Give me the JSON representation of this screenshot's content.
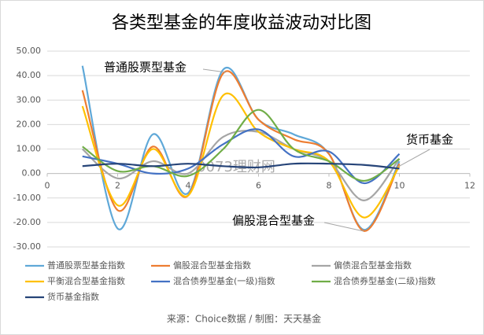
{
  "chart_data": {
    "type": "line",
    "title": "各类型基金的年度收益波动对比图",
    "xlim": [
      0,
      12
    ],
    "xticks": [
      0,
      2,
      4,
      6,
      8,
      10,
      12
    ],
    "ylim": [
      -30,
      50
    ],
    "yticks": [
      {
        "value": -30,
        "label": "-30.00"
      },
      {
        "value": -20,
        "label": "-20.00"
      },
      {
        "value": -10,
        "label": "-10.00"
      },
      {
        "value": 0,
        "label": "0.00"
      },
      {
        "value": 10,
        "label": "10.00"
      },
      {
        "value": 20,
        "label": "20.00"
      },
      {
        "value": 30,
        "label": "30.00"
      },
      {
        "value": 40,
        "label": "40.00"
      },
      {
        "value": 50,
        "label": "50.00"
      }
    ],
    "grid": true,
    "smooth": true,
    "legend": "bottom",
    "x": [
      1,
      2,
      3,
      4,
      5,
      6,
      7,
      8,
      9,
      10
    ],
    "series": [
      {
        "name": "普通股票型基金指数",
        "color": "#5fa8d8",
        "values": [
          44,
          -22.5,
          16,
          -8,
          42.5,
          22,
          16,
          8,
          -23,
          5
        ]
      },
      {
        "name": "偏股混合型基金指数",
        "color": "#ed7d31",
        "values": [
          34,
          -15,
          11,
          -9,
          41,
          22,
          14,
          8,
          -23.5,
          4
        ]
      },
      {
        "name": "偏债混合型基金指数",
        "color": "#a5a5a5",
        "values": [
          10,
          -2,
          5,
          0,
          15,
          17,
          10,
          5,
          -11,
          6
        ]
      },
      {
        "name": "平衡混合型基金指数",
        "color": "#ffc000",
        "values": [
          27.5,
          -13,
          10,
          -9,
          32,
          17,
          10,
          5,
          -18,
          3
        ]
      },
      {
        "name": "混合债券型基金(一级)指数",
        "color": "#4472c4",
        "values": [
          7,
          4,
          0,
          2,
          12,
          18,
          7,
          9,
          -4,
          8
        ]
      },
      {
        "name": "混合债券型基金(二级)指数",
        "color": "#70ad47",
        "values": [
          11,
          1,
          3,
          -1,
          10,
          26,
          10,
          5,
          -3,
          6
        ]
      },
      {
        "name": "货币基金指数",
        "color": "#264478",
        "values": [
          3,
          4,
          3,
          4,
          3,
          2.5,
          4,
          4,
          3.5,
          2
        ]
      }
    ],
    "annotations": [
      {
        "text": "普通股票型基金"
      },
      {
        "text": "货币基金"
      },
      {
        "text": "偏股混合型基金"
      }
    ],
    "watermark": "0073理财网",
    "source": "来源：Choice数据 / 制图：天天基金"
  }
}
